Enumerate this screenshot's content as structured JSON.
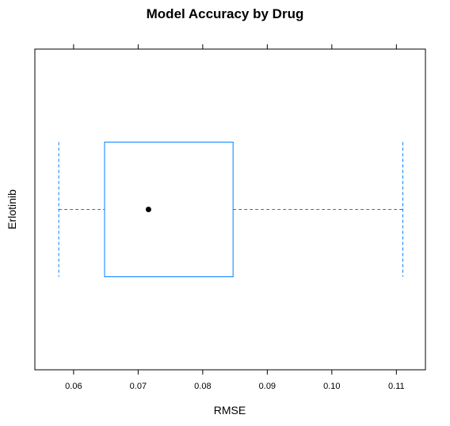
{
  "chart_data": {
    "type": "boxplot",
    "title": "Model Accuracy by Drug",
    "xlabel": "RMSE",
    "ylabel": "",
    "xlim": [
      0.054,
      0.1145
    ],
    "x_ticks": [
      0.06,
      0.07,
      0.08,
      0.09,
      0.1,
      0.11
    ],
    "x_tick_labels": [
      "0.06",
      "0.07",
      "0.08",
      "0.09",
      "0.10",
      "0.11"
    ],
    "categories": [
      "Erlotinib"
    ],
    "boxes": [
      {
        "category": "Erlotinib",
        "min": 0.0577,
        "q1": 0.0648,
        "median": 0.0716,
        "q3": 0.0847,
        "max": 0.111
      }
    ],
    "colors": {
      "box": "#0080ff",
      "whisker": "#0080ff",
      "median_dot": "#000000",
      "frame": "#000000"
    },
    "grid": false
  }
}
